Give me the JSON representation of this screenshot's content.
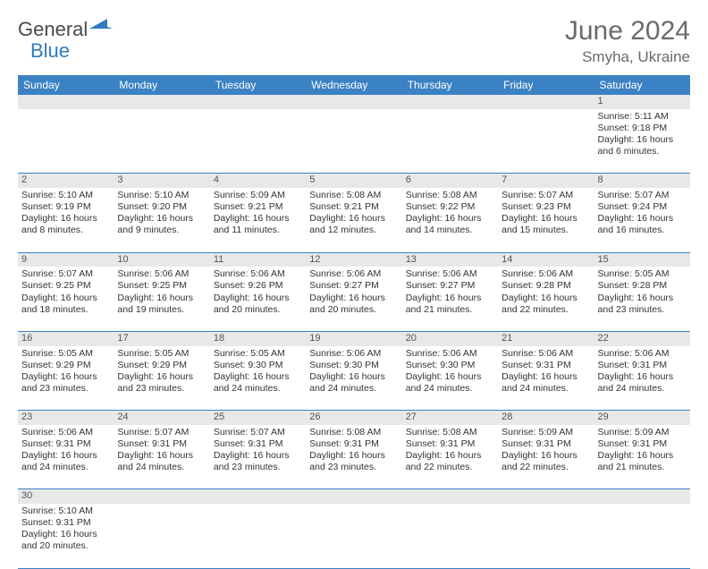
{
  "logo": {
    "part1": "General",
    "part2": "Blue"
  },
  "title": "June 2024",
  "location": "Smyha, Ukraine",
  "colors": {
    "header_bg": "#3b82c4",
    "header_text": "#ffffff",
    "daynum_bg": "#e8e8e8",
    "border": "#3b82c4",
    "text": "#333333",
    "title_color": "#6a6a6a"
  },
  "weekdays": [
    "Sunday",
    "Monday",
    "Tuesday",
    "Wednesday",
    "Thursday",
    "Friday",
    "Saturday"
  ],
  "weeks": [
    {
      "nums": [
        "",
        "",
        "",
        "",
        "",
        "",
        "1"
      ],
      "cells": [
        null,
        null,
        null,
        null,
        null,
        null,
        {
          "sr": "5:11 AM",
          "ss": "9:18 PM",
          "dl": "16 hours and 6 minutes."
        }
      ]
    },
    {
      "nums": [
        "2",
        "3",
        "4",
        "5",
        "6",
        "7",
        "8"
      ],
      "cells": [
        {
          "sr": "5:10 AM",
          "ss": "9:19 PM",
          "dl": "16 hours and 8 minutes."
        },
        {
          "sr": "5:10 AM",
          "ss": "9:20 PM",
          "dl": "16 hours and 9 minutes."
        },
        {
          "sr": "5:09 AM",
          "ss": "9:21 PM",
          "dl": "16 hours and 11 minutes."
        },
        {
          "sr": "5:08 AM",
          "ss": "9:21 PM",
          "dl": "16 hours and 12 minutes."
        },
        {
          "sr": "5:08 AM",
          "ss": "9:22 PM",
          "dl": "16 hours and 14 minutes."
        },
        {
          "sr": "5:07 AM",
          "ss": "9:23 PM",
          "dl": "16 hours and 15 minutes."
        },
        {
          "sr": "5:07 AM",
          "ss": "9:24 PM",
          "dl": "16 hours and 16 minutes."
        }
      ]
    },
    {
      "nums": [
        "9",
        "10",
        "11",
        "12",
        "13",
        "14",
        "15"
      ],
      "cells": [
        {
          "sr": "5:07 AM",
          "ss": "9:25 PM",
          "dl": "16 hours and 18 minutes."
        },
        {
          "sr": "5:06 AM",
          "ss": "9:25 PM",
          "dl": "16 hours and 19 minutes."
        },
        {
          "sr": "5:06 AM",
          "ss": "9:26 PM",
          "dl": "16 hours and 20 minutes."
        },
        {
          "sr": "5:06 AM",
          "ss": "9:27 PM",
          "dl": "16 hours and 20 minutes."
        },
        {
          "sr": "5:06 AM",
          "ss": "9:27 PM",
          "dl": "16 hours and 21 minutes."
        },
        {
          "sr": "5:06 AM",
          "ss": "9:28 PM",
          "dl": "16 hours and 22 minutes."
        },
        {
          "sr": "5:05 AM",
          "ss": "9:28 PM",
          "dl": "16 hours and 23 minutes."
        }
      ]
    },
    {
      "nums": [
        "16",
        "17",
        "18",
        "19",
        "20",
        "21",
        "22"
      ],
      "cells": [
        {
          "sr": "5:05 AM",
          "ss": "9:29 PM",
          "dl": "16 hours and 23 minutes."
        },
        {
          "sr": "5:05 AM",
          "ss": "9:29 PM",
          "dl": "16 hours and 23 minutes."
        },
        {
          "sr": "5:05 AM",
          "ss": "9:30 PM",
          "dl": "16 hours and 24 minutes."
        },
        {
          "sr": "5:06 AM",
          "ss": "9:30 PM",
          "dl": "16 hours and 24 minutes."
        },
        {
          "sr": "5:06 AM",
          "ss": "9:30 PM",
          "dl": "16 hours and 24 minutes."
        },
        {
          "sr": "5:06 AM",
          "ss": "9:31 PM",
          "dl": "16 hours and 24 minutes."
        },
        {
          "sr": "5:06 AM",
          "ss": "9:31 PM",
          "dl": "16 hours and 24 minutes."
        }
      ]
    },
    {
      "nums": [
        "23",
        "24",
        "25",
        "26",
        "27",
        "28",
        "29"
      ],
      "cells": [
        {
          "sr": "5:06 AM",
          "ss": "9:31 PM",
          "dl": "16 hours and 24 minutes."
        },
        {
          "sr": "5:07 AM",
          "ss": "9:31 PM",
          "dl": "16 hours and 24 minutes."
        },
        {
          "sr": "5:07 AM",
          "ss": "9:31 PM",
          "dl": "16 hours and 23 minutes."
        },
        {
          "sr": "5:08 AM",
          "ss": "9:31 PM",
          "dl": "16 hours and 23 minutes."
        },
        {
          "sr": "5:08 AM",
          "ss": "9:31 PM",
          "dl": "16 hours and 22 minutes."
        },
        {
          "sr": "5:09 AM",
          "ss": "9:31 PM",
          "dl": "16 hours and 22 minutes."
        },
        {
          "sr": "5:09 AM",
          "ss": "9:31 PM",
          "dl": "16 hours and 21 minutes."
        }
      ]
    },
    {
      "nums": [
        "30",
        "",
        "",
        "",
        "",
        "",
        ""
      ],
      "cells": [
        {
          "sr": "5:10 AM",
          "ss": "9:31 PM",
          "dl": "16 hours and 20 minutes."
        },
        null,
        null,
        null,
        null,
        null,
        null
      ]
    }
  ],
  "labels": {
    "sunrise": "Sunrise:",
    "sunset": "Sunset:",
    "daylight": "Daylight:"
  }
}
